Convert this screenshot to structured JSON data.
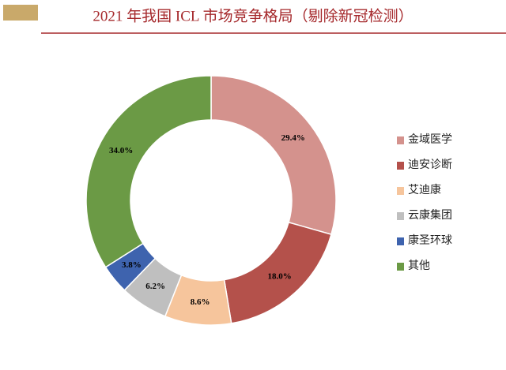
{
  "chart_data": {
    "type": "donut",
    "title": "2021 年我国 ICL 市场竞争格局（剔除新冠检测）",
    "categories": [
      "金域医学",
      "迪安诊断",
      "艾迪康",
      "云康集团",
      "康圣环球",
      "其他"
    ],
    "values": [
      29.4,
      18.0,
      8.6,
      6.2,
      3.8,
      34.0
    ],
    "value_labels": [
      "29.4%",
      "18.0%",
      "8.6%",
      "6.2%",
      "3.8%",
      "34.0%"
    ],
    "colors": [
      "#d4928d",
      "#b4514b",
      "#f6c59c",
      "#bfbfbf",
      "#3e63ae",
      "#6b9a45"
    ],
    "legend": "right"
  }
}
